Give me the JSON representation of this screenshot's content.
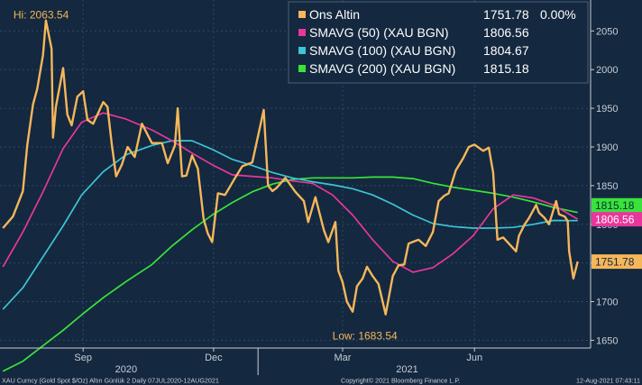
{
  "chart_data": {
    "type": "line",
    "x_axis": {
      "month_ticks": [
        "Sep",
        "Dec",
        "Mar",
        "Jun"
      ],
      "year_labels": [
        "2020",
        "2021"
      ]
    },
    "y_axis": {
      "ylim": [
        1640,
        2090
      ],
      "ticks": [
        1650,
        1700,
        1750,
        1800,
        1850,
        1900,
        1950,
        2000,
        2050
      ]
    },
    "annotations": {
      "high": "Hi: 2063.54",
      "low": "Low: 1683.54"
    },
    "legend": {
      "placement": "top-right",
      "entries": [
        {
          "label": "Ons Altin",
          "value": "1751.78",
          "change": "0.00%"
        },
        {
          "label": "SMAVG (50) (XAU BGN)",
          "value": "1806.56"
        },
        {
          "label": "SMAVG (100) (XAU BGN)",
          "value": "1804.67"
        },
        {
          "label": "SMAVG (200) (XAU BGN)",
          "value": "1815.18"
        }
      ]
    },
    "last_value_tags": [
      {
        "text": "1815.18",
        "value": 1815.18
      },
      {
        "text": "1806.56",
        "value": 1806.56
      },
      {
        "text": "1751.78",
        "value": 1751.78
      }
    ],
    "colors": {
      "background": "#14283f",
      "price": "#f5b75a",
      "sma50": "#e8379b",
      "sma100": "#3cc5d3",
      "sma200": "#39e33a",
      "text": "#ffffff",
      "axis_text": "#c8cdd6"
    },
    "series": [
      {
        "name": "Ons Altin",
        "color": "#f5b75a",
        "x": [
          "2020-07-07",
          "2020-07-14",
          "2020-07-21",
          "2020-07-24",
          "2020-07-28",
          "2020-07-31",
          "2020-08-04",
          "2020-08-06",
          "2020-08-10",
          "2020-08-11",
          "2020-08-13",
          "2020-08-18",
          "2020-08-21",
          "2020-08-24",
          "2020-08-28",
          "2020-09-01",
          "2020-09-04",
          "2020-09-08",
          "2020-09-15",
          "2020-09-18",
          "2020-09-21",
          "2020-09-24",
          "2020-09-28",
          "2020-10-02",
          "2020-10-07",
          "2020-10-12",
          "2020-10-19",
          "2020-10-26",
          "2020-10-30",
          "2020-11-04",
          "2020-11-06",
          "2020-11-09",
          "2020-11-12",
          "2020-11-16",
          "2020-11-20",
          "2020-11-24",
          "2020-11-27",
          "2020-11-30",
          "2020-12-04",
          "2020-12-09",
          "2020-12-16",
          "2020-12-21",
          "2020-12-28",
          "2021-01-05",
          "2021-01-06",
          "2021-01-08",
          "2021-01-11",
          "2021-01-14",
          "2021-01-20",
          "2021-01-27",
          "2021-02-02",
          "2021-02-05",
          "2021-02-10",
          "2021-02-16",
          "2021-02-19",
          "2021-02-24",
          "2021-02-26",
          "2021-03-01",
          "2021-03-04",
          "2021-03-08",
          "2021-03-11",
          "2021-03-15",
          "2021-03-18",
          "2021-03-22",
          "2021-03-26",
          "2021-03-31",
          "2021-04-05",
          "2021-04-09",
          "2021-04-13",
          "2021-04-16",
          "2021-04-20",
          "2021-04-23",
          "2021-04-28",
          "2021-05-03",
          "2021-05-07",
          "2021-05-11",
          "2021-05-14",
          "2021-05-19",
          "2021-05-24",
          "2021-05-28",
          "2021-06-01",
          "2021-06-07",
          "2021-06-11",
          "2021-06-14",
          "2021-06-17",
          "2021-06-21",
          "2021-06-25",
          "2021-06-30",
          "2021-07-02",
          "2021-07-06",
          "2021-07-09",
          "2021-07-14",
          "2021-07-16",
          "2021-07-20",
          "2021-07-23",
          "2021-07-28",
          "2021-07-30",
          "2021-08-03",
          "2021-08-05",
          "2021-08-06",
          "2021-08-09",
          "2021-08-12"
        ],
        "y": [
          1795,
          1810,
          1843,
          1902,
          1955,
          1975,
          2019,
          2063.54,
          2027,
          1912,
          1952,
          2002,
          1942,
          1928,
          1965,
          1972,
          1935,
          1930,
          1958,
          1952,
          1903,
          1862,
          1877,
          1900,
          1887,
          1930,
          1905,
          1905,
          1879,
          1902,
          1950,
          1862,
          1863,
          1889,
          1872,
          1807,
          1788,
          1777,
          1840,
          1838,
          1860,
          1875,
          1880,
          1948,
          1915,
          1850,
          1843,
          1847,
          1860,
          1842,
          1830,
          1803,
          1835,
          1792,
          1777,
          1803,
          1740,
          1725,
          1700,
          1687,
          1720,
          1730,
          1745,
          1733,
          1723,
          1683.54,
          1733,
          1747,
          1748,
          1775,
          1778,
          1780,
          1772,
          1790,
          1830,
          1837,
          1840,
          1870,
          1885,
          1900,
          1903,
          1895,
          1899,
          1867,
          1780,
          1783,
          1775,
          1765,
          1785,
          1800,
          1808,
          1825,
          1815,
          1808,
          1800,
          1830,
          1813,
          1810,
          1804,
          1765,
          1730,
          1751.78
        ]
      },
      {
        "name": "SMAVG (50) (XAU BGN)",
        "color": "#e8379b",
        "x": [
          "2020-07-07",
          "2020-07-21",
          "2020-08-04",
          "2020-08-18",
          "2020-08-31",
          "2020-09-15",
          "2020-10-01",
          "2020-10-19",
          "2020-11-02",
          "2020-11-16",
          "2020-11-30",
          "2020-12-14",
          "2020-12-28",
          "2021-01-11",
          "2021-01-25",
          "2021-02-08",
          "2021-02-22",
          "2021-03-08",
          "2021-03-22",
          "2021-04-05",
          "2021-04-19",
          "2021-05-03",
          "2021-05-17",
          "2021-05-31",
          "2021-06-14",
          "2021-06-28",
          "2021-07-12",
          "2021-07-26",
          "2021-08-12"
        ],
        "y": [
          1745,
          1790,
          1842,
          1898,
          1932,
          1944,
          1936,
          1922,
          1908,
          1892,
          1877,
          1864,
          1862,
          1860,
          1856,
          1853,
          1838,
          1812,
          1780,
          1752,
          1738,
          1744,
          1762,
          1785,
          1820,
          1838,
          1834,
          1825,
          1806.56
        ]
      },
      {
        "name": "SMAVG (100) (XAU BGN)",
        "color": "#3cc5d3",
        "x": [
          "2020-07-07",
          "2020-07-21",
          "2020-08-04",
          "2020-08-18",
          "2020-08-31",
          "2020-09-15",
          "2020-10-01",
          "2020-10-19",
          "2020-11-02",
          "2020-11-16",
          "2020-11-30",
          "2020-12-14",
          "2020-12-28",
          "2021-01-11",
          "2021-01-25",
          "2021-02-08",
          "2021-02-22",
          "2021-03-08",
          "2021-03-22",
          "2021-04-05",
          "2021-04-19",
          "2021-05-03",
          "2021-05-17",
          "2021-05-31",
          "2021-06-14",
          "2021-06-28",
          "2021-07-12",
          "2021-07-26",
          "2021-08-12"
        ],
        "y": [
          1690,
          1718,
          1758,
          1798,
          1838,
          1868,
          1890,
          1902,
          1908,
          1908,
          1897,
          1884,
          1876,
          1867,
          1860,
          1855,
          1851,
          1846,
          1838,
          1826,
          1812,
          1801,
          1797,
          1795,
          1795,
          1796,
          1800,
          1805,
          1804.67
        ]
      },
      {
        "name": "SMAVG (200) (XAU BGN)",
        "color": "#39e33a",
        "x": [
          "2020-07-07",
          "2020-07-21",
          "2020-08-04",
          "2020-08-18",
          "2020-08-31",
          "2020-09-15",
          "2020-10-01",
          "2020-10-19",
          "2020-11-02",
          "2020-11-16",
          "2020-11-30",
          "2020-12-14",
          "2020-12-28",
          "2021-01-11",
          "2021-01-25",
          "2021-02-08",
          "2021-02-22",
          "2021-03-08",
          "2021-03-22",
          "2021-04-05",
          "2021-04-19",
          "2021-05-03",
          "2021-05-17",
          "2021-05-31",
          "2021-06-14",
          "2021-06-28",
          "2021-07-12",
          "2021-07-26",
          "2021-08-12"
        ],
        "y": [
          1610,
          1623,
          1643,
          1663,
          1683,
          1705,
          1726,
          1748,
          1772,
          1793,
          1812,
          1828,
          1842,
          1852,
          1858,
          1860,
          1860,
          1860,
          1861,
          1861,
          1859,
          1853,
          1848,
          1844,
          1840,
          1835,
          1829,
          1822,
          1815.18
        ]
      }
    ]
  },
  "footer": {
    "left": "XAU Curncy (Gold Spot  $/Oz) Altın Günlük 2  Daily 07JUL2020-12AUG2021",
    "center": "Copyright© 2021 Bloomberg Finance L.P.",
    "right": "12-Aug-2021 07:43:11"
  }
}
